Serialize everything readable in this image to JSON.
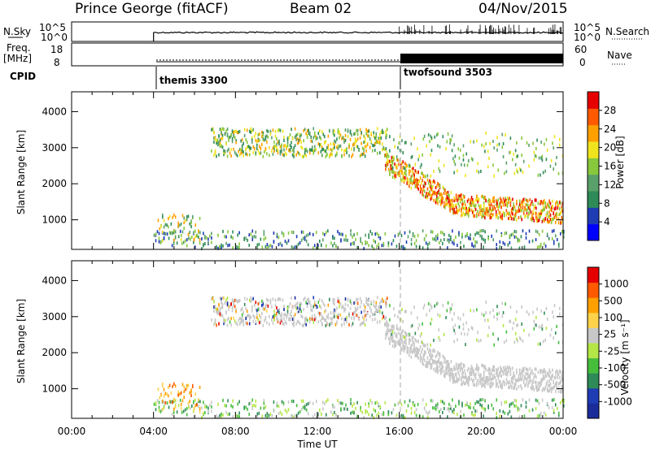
{
  "header": {
    "title": "Prince George (fitACF)",
    "beam": "Beam 02",
    "date": "04/Nov/2015"
  },
  "top_panels": {
    "nsky_label": "N.Sky",
    "nsky_ticks": [
      "10^5",
      "10^0"
    ],
    "nsearch_label": "N.Search",
    "nsearch_ticks": [
      "10^5",
      "10^0"
    ],
    "freq_label": "Freq.",
    "freq_unit": "[MHz]",
    "freq_ticks": [
      "18",
      "8"
    ],
    "nave_label": "Nave",
    "nave_ticks": [
      "60",
      "0"
    ],
    "cpid_label": "CPID",
    "modes": [
      {
        "start_hour": 4,
        "label": "themis 3300"
      },
      {
        "start_hour": 16,
        "label": "twofsound 3503"
      }
    ]
  },
  "colors": {
    "power_scale": [
      "#0000ff",
      "#1e3cb4",
      "#2e8b57",
      "#5aa06a",
      "#88c83c",
      "#f0e41e",
      "#ffa000",
      "#ff5a00",
      "#e60000"
    ],
    "velocity_scale": [
      "#e60000",
      "#ff5a00",
      "#ffa000",
      "#ffd24a",
      "#c8c8c8",
      "#b4e646",
      "#46be3c",
      "#2e8b57",
      "#1e3cb4",
      "#1a2c9a"
    ],
    "ground_scatter": "#c8c8c8"
  },
  "chart_data": [
    {
      "type": "heatmap",
      "panel": "power",
      "xlabel": "Time UT",
      "ylabel": "Slant Range [km]",
      "x_range_hours": [
        0,
        24
      ],
      "x_ticks": [
        "00:00",
        "04:00",
        "08:00",
        "12:00",
        "16:00",
        "20:00",
        "00:00"
      ],
      "ylim": [
        180,
        4550
      ],
      "y_ticks": [
        1000,
        2000,
        3000,
        4000
      ],
      "colorbar_label": "Power [dB]",
      "colorbar_ticks": [
        "28",
        "24",
        "20",
        "16",
        "12",
        "8",
        "4"
      ],
      "colorbar_range": [
        0,
        30
      ]
    },
    {
      "type": "heatmap",
      "panel": "velocity",
      "xlabel": "Time UT",
      "ylabel": "Slant Range [km]",
      "x_range_hours": [
        0,
        24
      ],
      "x_ticks": [
        "00:00",
        "04:00",
        "08:00",
        "12:00",
        "16:00",
        "20:00",
        "00:00"
      ],
      "ylim": [
        180,
        4550
      ],
      "y_ticks": [
        1000,
        2000,
        3000,
        4000
      ],
      "colorbar_label": "Velocity [m s⁻¹]",
      "colorbar_ticks": [
        "1000",
        "500",
        "100",
        "25",
        "-25",
        "-100",
        "-500",
        "-1000"
      ]
    }
  ]
}
